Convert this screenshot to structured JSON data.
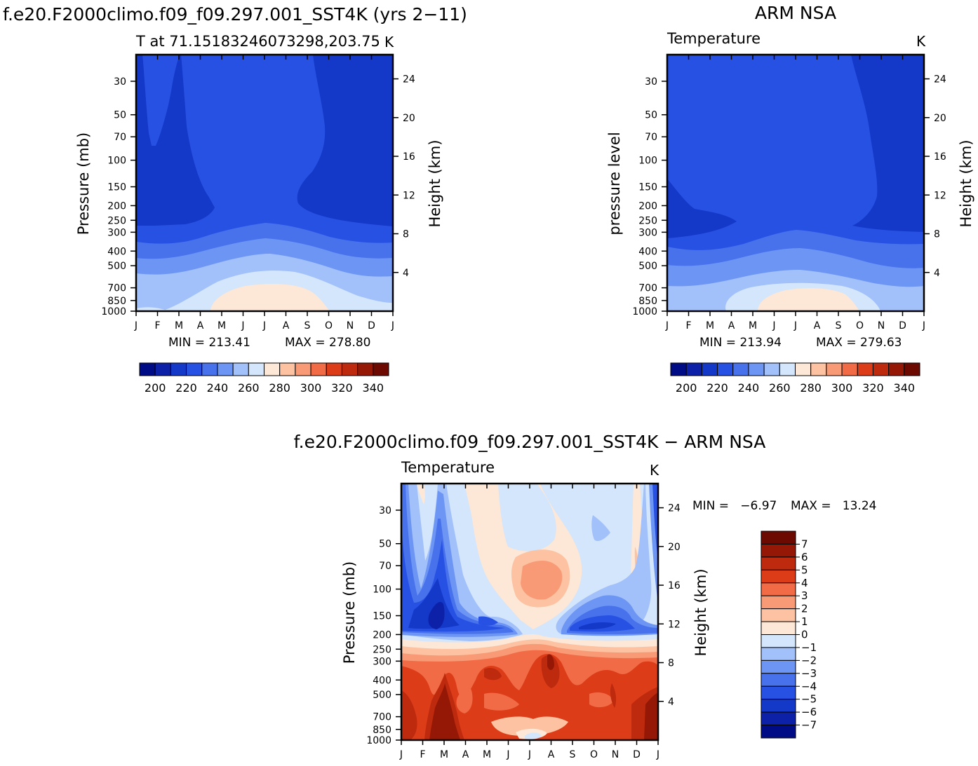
{
  "palette": {
    "abs": [
      "#000c85",
      "#0d21a8",
      "#1438c8",
      "#2651e3",
      "#4871ec",
      "#6d95f4",
      "#a2c0fa",
      "#d3e6fc",
      "#fde7d6",
      "#fcc2a1",
      "#f89a76",
      "#f16c46",
      "#dd3c18",
      "#bd2a0e",
      "#941805",
      "#6c0a02"
    ],
    "diff": [
      "#000c85",
      "#0d21a8",
      "#1438c8",
      "#2651e3",
      "#4871ec",
      "#6d95f4",
      "#a2c0fa",
      "#d3e6fc",
      "#fde7d6",
      "#fcc2a1",
      "#f89a76",
      "#f16c46",
      "#dd3c18",
      "#bd2a0e",
      "#941805",
      "#6c0a02"
    ]
  },
  "months": [
    "J",
    "F",
    "M",
    "A",
    "M",
    "J",
    "J",
    "A",
    "S",
    "O",
    "N",
    "D",
    "J"
  ],
  "pressure_ticks": [
    "30",
    "50",
    "70",
    "100",
    "150",
    "200",
    "250",
    "300",
    "400",
    "500",
    "700",
    "850",
    "1000"
  ],
  "height_ticks_top": [
    "24",
    "20",
    "16",
    "12",
    "8",
    "4"
  ],
  "height_ticks_bottom": [
    "24",
    "20",
    "16",
    "12",
    "8",
    "4"
  ],
  "chart_data": [
    {
      "type": "contour",
      "suptitle": "f.e20.F2000climo.f09_f09.297.001_SST4K (yrs 2−11)",
      "title": "T at 71.15183246073298,203.75",
      "unit": "K",
      "xlabel": "",
      "ylabel": "Pressure (mb)",
      "y2label": "Height (km)",
      "min_label": "MIN = 213.41",
      "max_label": "MAX = 278.80",
      "min": 213.41,
      "max": 278.8,
      "colorbar_levels": [
        "200",
        "220",
        "240",
        "260",
        "280",
        "300",
        "320",
        "340"
      ],
      "levels": [
        195,
        200,
        205,
        210,
        215,
        220,
        225,
        230,
        235,
        240,
        245,
        250,
        255,
        260,
        265,
        270,
        275,
        280
      ]
    },
    {
      "type": "contour",
      "suptitle": "ARM NSA",
      "title": "Temperature",
      "unit": "K",
      "xlabel": "",
      "ylabel": "pressure level",
      "y2label": "Height (km)",
      "min_label": "MIN = 213.94",
      "max_label": "MAX = 279.63",
      "min": 213.94,
      "max": 279.63,
      "colorbar_levels": [
        "200",
        "220",
        "240",
        "260",
        "280",
        "300",
        "320",
        "340"
      ]
    },
    {
      "type": "contour",
      "suptitle": "f.e20.F2000climo.f09_f09.297.001_SST4K − ARM NSA",
      "title": "Temperature",
      "unit": "K",
      "xlabel": "",
      "ylabel": "Pressure (mb)",
      "y2label": "Height (km)",
      "min_label": "MIN =   −6.97",
      "max_label": "MAX =   13.24",
      "min": -6.97,
      "max": 13.24,
      "colorbar_levels": [
        "7",
        "6",
        "5",
        "4",
        "3",
        "2",
        "1",
        "0",
        "−1",
        "−2",
        "−3",
        "−4",
        "−5",
        "−6",
        "−7"
      ]
    }
  ]
}
